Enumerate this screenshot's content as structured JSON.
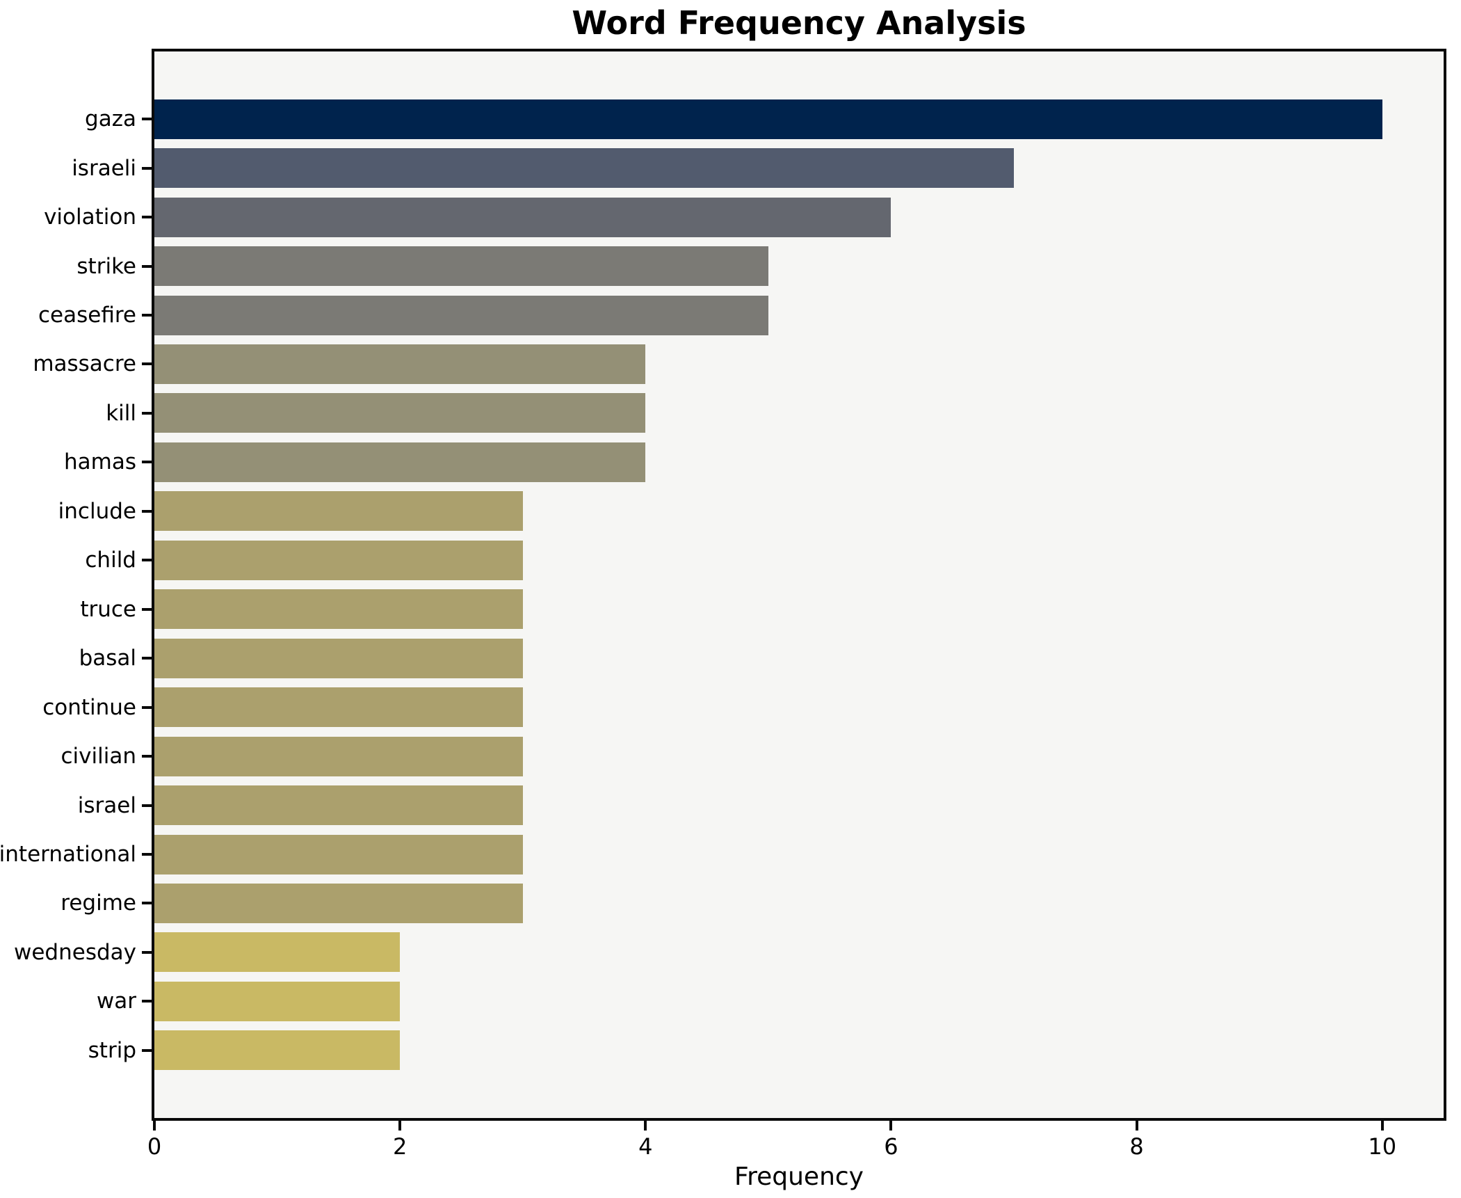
{
  "chart_data": {
    "type": "bar",
    "orientation": "horizontal",
    "title": "Word Frequency Analysis",
    "xlabel": "Frequency",
    "ylabel": "",
    "categories": [
      "gaza",
      "israeli",
      "violation",
      "strike",
      "ceasefire",
      "massacre",
      "kill",
      "hamas",
      "include",
      "child",
      "truce",
      "basal",
      "continue",
      "civilian",
      "israel",
      "international",
      "regime",
      "wednesday",
      "war",
      "strip"
    ],
    "values": [
      10,
      7,
      6,
      5,
      5,
      4,
      4,
      4,
      3,
      3,
      3,
      3,
      3,
      3,
      3,
      3,
      3,
      2,
      2,
      2
    ],
    "bar_colors": [
      "#00234d",
      "#525b6e",
      "#64676f",
      "#7b7a75",
      "#7b7a75",
      "#949076",
      "#949076",
      "#949076",
      "#aba06d",
      "#aba06d",
      "#aba06d",
      "#aba06d",
      "#aba06d",
      "#aba06d",
      "#aba06d",
      "#aba06d",
      "#aba06d",
      "#c9b964",
      "#c9b964",
      "#c9b964"
    ],
    "xticks": [
      0,
      2,
      4,
      6,
      8,
      10
    ],
    "xlim": [
      0,
      10.5
    ],
    "grid": false,
    "legend": "none",
    "colors": {
      "figure_background": "#ffffff",
      "plot_background": "#f6f6f4",
      "spine": "#0a0a0a",
      "text": "#000000"
    }
  }
}
